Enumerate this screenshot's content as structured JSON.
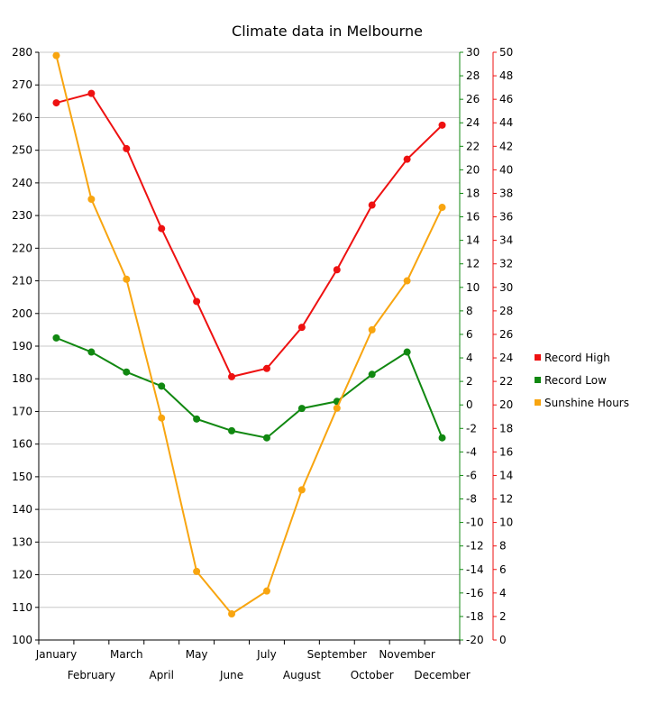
{
  "chart_data": {
    "type": "line",
    "title": "Climate data in Melbourne",
    "categories": [
      "January",
      "February",
      "March",
      "April",
      "May",
      "June",
      "July",
      "August",
      "September",
      "October",
      "November",
      "December"
    ],
    "series": [
      {
        "name": "Record High",
        "color": "#ee1111",
        "axis": "right_green",
        "values": [
          25.7,
          26.5,
          21.8,
          15.0,
          8.8,
          2.4,
          3.1,
          6.6,
          11.5,
          17.0,
          20.9,
          23.8
        ]
      },
      {
        "name": "Record Low",
        "color": "#118811",
        "axis": "right_green",
        "values": [
          5.7,
          4.5,
          2.8,
          1.6,
          -1.2,
          -2.2,
          -2.8,
          -0.3,
          0.3,
          2.6,
          4.5,
          -2.8
        ]
      },
      {
        "name": "Sunshine Hours",
        "color": "#f8a510",
        "axis": "left",
        "values": [
          279,
          235,
          210.5,
          168,
          121,
          108,
          115,
          146,
          171,
          195,
          210,
          232.5
        ]
      }
    ],
    "axes": {
      "left": {
        "min": 100,
        "max": 280,
        "step": 10
      },
      "right_green": {
        "min": -20,
        "max": 30,
        "step": 2,
        "color": "#118811"
      },
      "right_red": {
        "min": 0,
        "max": 50,
        "step": 2,
        "color": "#ee1111"
      }
    },
    "grid": true,
    "legend_position": "right"
  }
}
